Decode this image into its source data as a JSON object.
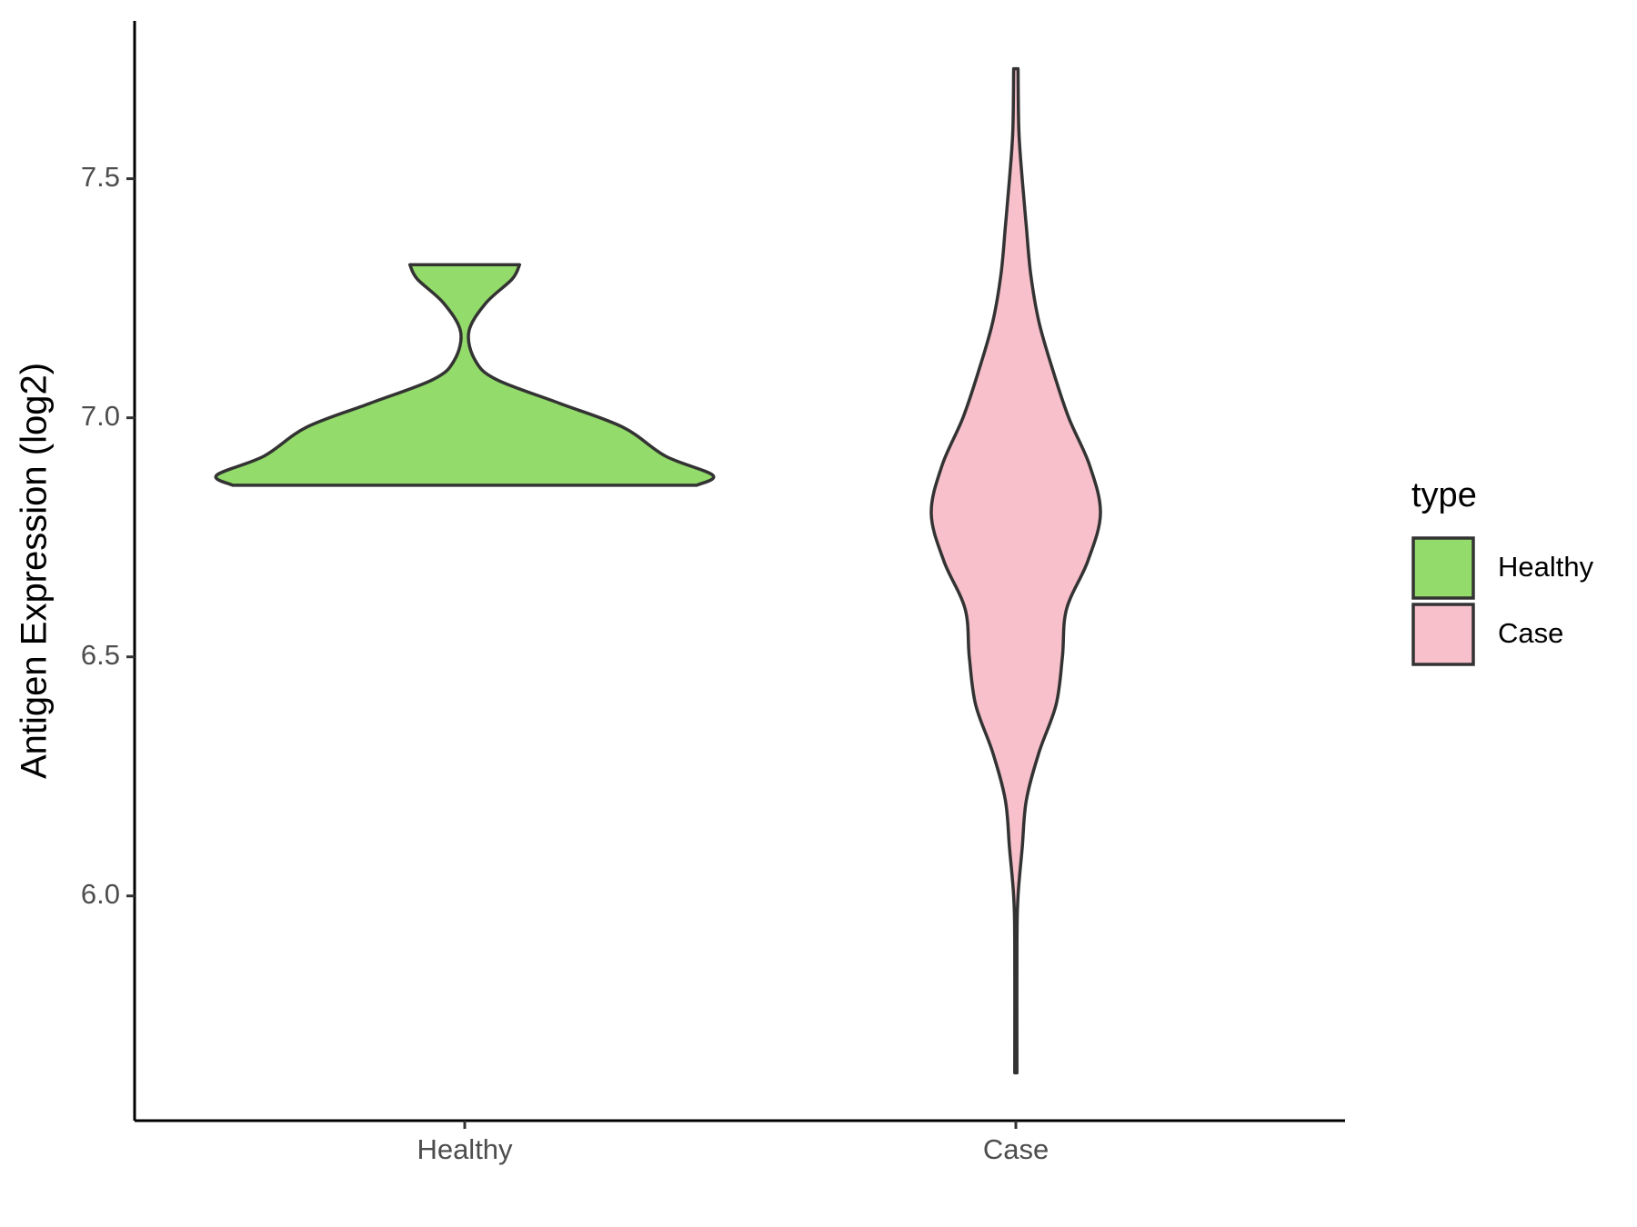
{
  "chart_data": {
    "type": "violin",
    "y_label": "Antigen Expression (log2)",
    "categories": [
      "Healthy",
      "Case"
    ],
    "ylim": [
      5.53,
      7.83
    ],
    "yticks": [
      {
        "value": 6,
        "label": "6.0"
      },
      6.5,
      {
        "value": 7,
        "label": "7.0"
      },
      7.5
    ],
    "legend_title": "type",
    "legend_position": "right",
    "outline_color": "#333333",
    "series": [
      {
        "name": "Healthy",
        "color": "#93db6a",
        "y": [
          6.859,
          6.88,
          6.92,
          6.98,
          7.03,
          7.08,
          7.12,
          7.18,
          7.24,
          7.29,
          7.32
        ],
        "width": [
          0.843,
          0.9,
          0.728,
          0.575,
          0.345,
          0.115,
          0.038,
          0.015,
          0.077,
          0.172,
          0.199
        ]
      },
      {
        "name": "Case",
        "color": "#f7c0cb",
        "y": [
          5.63,
          5.9,
          6.0,
          6.1,
          6.2,
          6.3,
          6.4,
          6.5,
          6.6,
          6.7,
          6.8,
          6.9,
          7.0,
          7.1,
          7.2,
          7.3,
          7.4,
          7.5,
          7.6,
          7.73
        ],
        "width": [
          0.004,
          0.004,
          0.008,
          0.023,
          0.038,
          0.084,
          0.146,
          0.169,
          0.184,
          0.261,
          0.307,
          0.268,
          0.192,
          0.134,
          0.084,
          0.054,
          0.038,
          0.023,
          0.011,
          0.008
        ]
      }
    ]
  }
}
